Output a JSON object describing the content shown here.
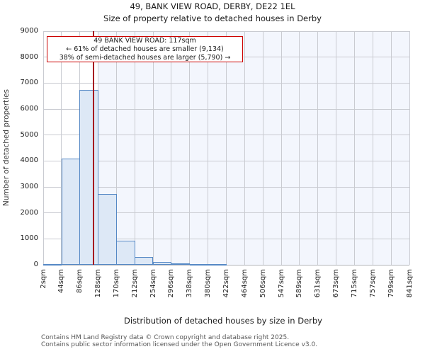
{
  "title": {
    "line1": "49, BANK VIEW ROAD, DERBY, DE22 1EL",
    "line2": "Size of property relative to detached houses in Derby"
  },
  "annotation": {
    "line1": "49 BANK VIEW ROAD: 117sqm",
    "line2": "← 61% of detached houses are smaller (9,134)",
    "line3": "38% of semi-detached houses are larger (5,790) →"
  },
  "footer": {
    "line1": "Contains HM Land Registry data © Crown copyright and database right 2025.",
    "line2": "Contains public sector information licensed under the Open Government Licence v3.0."
  },
  "colors": {
    "bar_fill": "#dde8f6",
    "bar_edge": "#5588c5",
    "marker_line": "#a51220",
    "annotation_border": "#cc0000",
    "grid": "#c9cbd1",
    "shaded_background": "#f3f6fd",
    "axis_line": "#b3b5ba",
    "footer_text": "#565656"
  },
  "chart_data": {
    "type": "bar",
    "title": "49, BANK VIEW ROAD, DERBY, DE22 1EL",
    "subtitle": "Size of property relative to detached houses in Derby",
    "xlabel": "Distribution of detached houses by size in Derby",
    "ylabel": "Number of detached properties",
    "bin_labels": [
      "2sqm",
      "44sqm",
      "86sqm",
      "128sqm",
      "170sqm",
      "212sqm",
      "254sqm",
      "296sqm",
      "338sqm",
      "380sqm",
      "422sqm",
      "464sqm",
      "506sqm",
      "547sqm",
      "589sqm",
      "631sqm",
      "673sqm",
      "715sqm",
      "757sqm",
      "799sqm",
      "841sqm"
    ],
    "values": [
      40,
      4100,
      6750,
      2730,
      930,
      310,
      110,
      50,
      30,
      20,
      0,
      0,
      0,
      0,
      0,
      0,
      0,
      0,
      0,
      0
    ],
    "ylim": [
      0,
      9000
    ],
    "yticks": [
      0,
      1000,
      2000,
      3000,
      4000,
      5000,
      6000,
      7000,
      8000,
      9000
    ],
    "x_range_sqm": [
      2,
      841
    ],
    "marker_sqm": 117,
    "shaded_from_label": "128sqm",
    "grid": true,
    "legend": null
  }
}
